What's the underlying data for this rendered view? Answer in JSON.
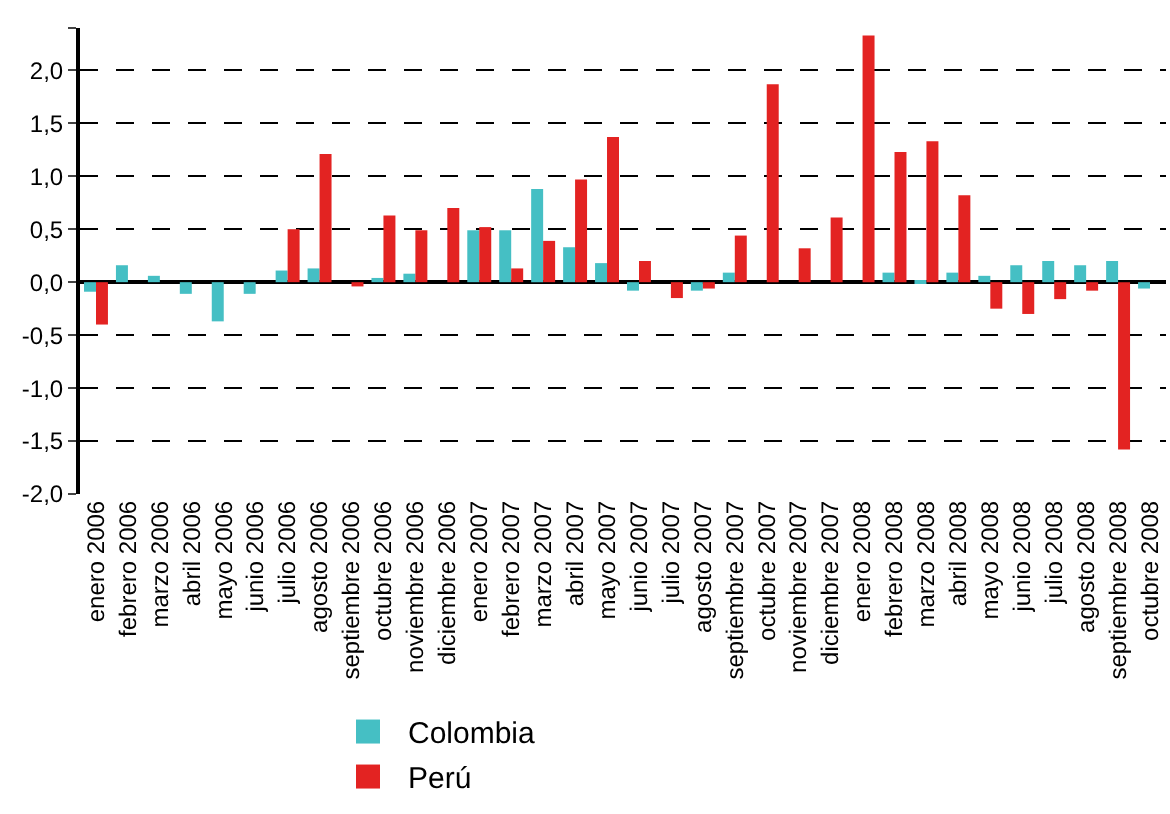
{
  "chart_data": {
    "type": "bar",
    "categories": [
      "enero 2006",
      "febrero 2006",
      "marzo 2006",
      "abril 2006",
      "mayo 2006",
      "junio 2006",
      "julio 2006",
      "agosto 2006",
      "septiembre 2006",
      "octubre 2006",
      "noviembre 2006",
      "diciembre 2006",
      "enero 2007",
      "febrero 2007",
      "marzo 2007",
      "abril 2007",
      "mayo 2007",
      "junio 2007",
      "julio 2007",
      "agosto 2007",
      "septiembre 2007",
      "octubre 2007",
      "noviembre 2007",
      "diciembre 2007",
      "enero 2008",
      "febrero 2008",
      "marzo 2008",
      "abril 2008",
      "mayo 2008",
      "junio 2008",
      "julio 2008",
      "agosto 2008",
      "septiembre 2008",
      "octubre 2008"
    ],
    "series": [
      {
        "name": "Colombia",
        "color": "#45bfc4",
        "values": [
          -0.09,
          0.16,
          0.06,
          -0.11,
          -0.37,
          -0.11,
          0.11,
          0.13,
          0,
          0.04,
          0.08,
          0,
          0.49,
          0.49,
          0.88,
          0.33,
          0.18,
          -0.08,
          0,
          -0.08,
          0.09,
          0,
          0,
          0,
          0,
          0.09,
          0.02,
          0.09,
          0.06,
          0.16,
          0.2,
          0.16,
          0.2,
          -0.06
        ]
      },
      {
        "name": "Perú",
        "color": "#e32322",
        "values": [
          -0.4,
          0,
          0,
          0,
          0,
          0,
          0.5,
          1.21,
          -0.04,
          0.63,
          0.49,
          0.7,
          0.52,
          0.13,
          0.39,
          0.97,
          1.37,
          0.2,
          -0.15,
          -0.06,
          0.44,
          1.87,
          0.32,
          0.61,
          2.33,
          1.23,
          1.33,
          0.82,
          -0.25,
          -0.3,
          -0.16,
          -0.08,
          -1.58,
          null
        ]
      }
    ],
    "ylim": [
      -2,
      2.4
    ],
    "yticks": [
      {
        "value": -2,
        "label": "-2,0"
      },
      {
        "value": -1.5,
        "label": "-1,5"
      },
      {
        "value": -1,
        "label": "-1,0"
      },
      {
        "value": -0.5,
        "label": "-0,5"
      },
      {
        "value": 0,
        "label": "0,0"
      },
      {
        "value": 0.5,
        "label": "0,5"
      },
      {
        "value": 1,
        "label": "1,0"
      },
      {
        "value": 1.5,
        "label": "1,5"
      },
      {
        "value": 2,
        "label": "2,0"
      },
      {
        "value": 2.4,
        "label": null
      }
    ],
    "grid": "y",
    "legend": "bottom"
  }
}
